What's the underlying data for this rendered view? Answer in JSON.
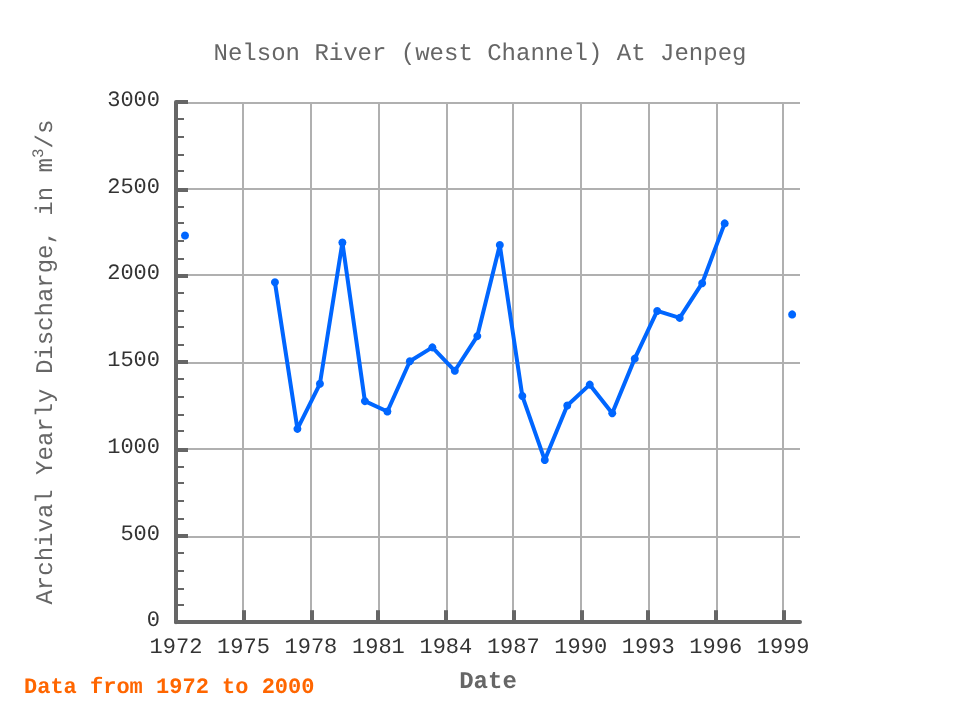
{
  "chart_data": {
    "type": "line",
    "title": "Nelson River (west Channel) At Jenpeg",
    "xlabel": "Date",
    "ylabel": "Archival Yearly Discharge, in m$^{3}$/s",
    "annotations": [
      "Data from 1972 to 2000"
    ],
    "x": [
      1972.4,
      1973.4,
      1974.4,
      1975.4,
      1976.4,
      1977.4,
      1978.4,
      1979.4,
      1980.4,
      1981.4,
      1982.4,
      1983.4,
      1984.4,
      1985.4,
      1986.4,
      1987.4,
      1988.4,
      1989.4,
      1990.4,
      1991.4,
      1992.4,
      1993.4,
      1994.4,
      1995.4,
      1996.4,
      1997.4,
      1998.4,
      1999.4
    ],
    "series": [
      {
        "color": "#0066ff",
        "values": [
          2230,
          null,
          null,
          null,
          1960,
          1115,
          1375,
          2190,
          1275,
          1215,
          1505,
          1585,
          1450,
          1650,
          2175,
          1305,
          935,
          1250,
          1370,
          1205,
          1520,
          1795,
          1755,
          1955,
          2300,
          null,
          null,
          1775
        ]
      }
    ],
    "xlim": [
      1972,
      1999.75
    ],
    "xticks": [
      1972,
      1975,
      1978,
      1981,
      1984,
      1987,
      1990,
      1993,
      1996,
      1999
    ],
    "ylim": [
      0,
      3000
    ],
    "yticks": [
      0,
      500,
      1000,
      1500,
      2000,
      2500,
      3000
    ],
    "grid": true,
    "marker": "circle",
    "line_style": "solid"
  }
}
